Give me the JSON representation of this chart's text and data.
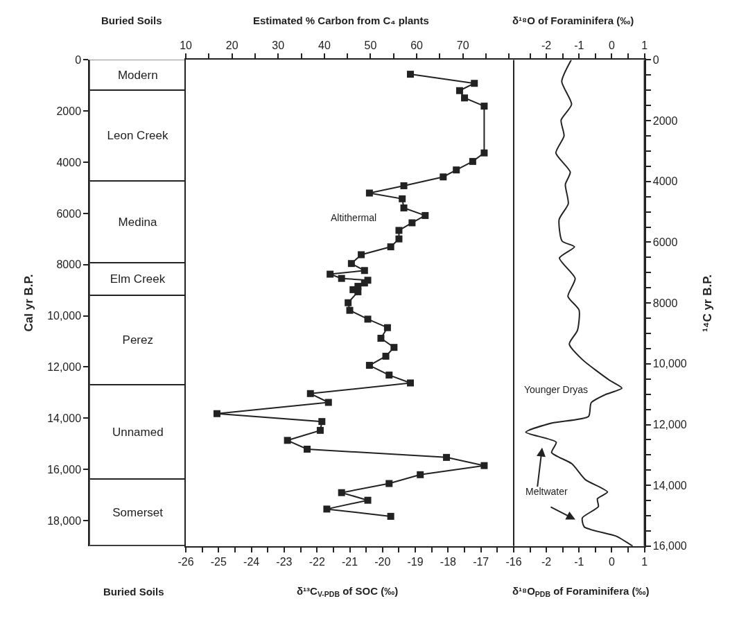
{
  "chart_data": [
    {
      "type": "bar",
      "stacked": true,
      "title": "Buried Soils",
      "xlabel": "Buried Soils",
      "ylabel": "Cal yr B.P.",
      "ylim": [
        19000,
        0
      ],
      "categories": [
        null
      ],
      "series": [
        {
          "name": "Modern",
          "color": "#ffffff",
          "values": [
            1200
          ]
        },
        {
          "name": "Leon Creek",
          "color": "#ffffff",
          "values": [
            3550
          ]
        },
        {
          "name": "Medina",
          "color": "#ffffff",
          "values": [
            3200
          ]
        },
        {
          "name": "Elm Creek",
          "color": "#ffffff",
          "values": [
            1250
          ]
        },
        {
          "name": "Perez",
          "color": "#ffffff",
          "values": [
            3500
          ]
        },
        {
          "name": "Unnamed",
          "color": "#ffffff",
          "values": [
            3700
          ]
        },
        {
          "name": "Somerset",
          "color": "#ffffff",
          "values": [
            2600
          ]
        }
      ],
      "yticks": [
        0,
        2000,
        4000,
        6000,
        8000,
        {
          "value": 10000,
          "label": "10,000"
        },
        {
          "value": 12000,
          "label": "12,000"
        },
        {
          "value": 14000,
          "label": "14,000"
        },
        {
          "value": 16000,
          "label": "16,000"
        },
        {
          "value": 18000,
          "label": "18,000"
        }
      ]
    },
    {
      "type": "line",
      "xlabel": "δ¹³C$_{V-PDB}$ of SOC (‰)",
      "x2label": "Estimated % Carbon from C₄ plants",
      "tick_labels": "x",
      "marker": "square",
      "line_style": "solid",
      "xlim": [
        -26,
        -16
      ],
      "xticks": [
        -26,
        {
          "value": -25.5,
          "label": null
        },
        -25,
        {
          "value": -24.5,
          "label": null
        },
        -24,
        {
          "value": -23.5,
          "label": null
        },
        -23,
        {
          "value": -22.5,
          "label": null
        },
        -22,
        {
          "value": -21.5,
          "label": null
        },
        -21,
        {
          "value": -20.5,
          "label": null
        },
        -20,
        {
          "value": -19.5,
          "label": null
        },
        -19,
        {
          "value": -18.5,
          "label": null
        },
        -18,
        {
          "value": -17.5,
          "label": null
        },
        -17,
        {
          "value": -16.5,
          "label": null
        },
        -16
      ],
      "x2lim": [
        10,
        81
      ],
      "x2ticks": [
        10,
        {
          "value": 15,
          "label": null
        },
        20,
        {
          "value": 25,
          "label": null
        },
        30,
        {
          "value": 35,
          "label": null
        },
        40,
        {
          "value": 45,
          "label": null
        },
        50,
        {
          "value": 55,
          "label": null
        },
        60,
        {
          "value": 65,
          "label": null
        },
        70,
        {
          "value": 75,
          "label": null
        },
        {
          "value": 80,
          "label": null
        }
      ],
      "ylim": [
        16000,
        0
      ],
      "annotations": [
        "Altithermal"
      ],
      "series": [
        {
          "color": "#222222",
          "x": [
            -19.15,
            -17.2,
            -17.65,
            -17.5,
            -16.9,
            -16.9,
            -17.25,
            -17.75,
            -18.15,
            -19.35,
            -20.4,
            -19.4,
            -19.35,
            -18.7,
            -19.1,
            -19.5,
            -19.5,
            -19.75,
            -20.65,
            -20.95,
            -20.55,
            -21.6,
            -21.25,
            -20.45,
            -20.55,
            -20.75,
            -20.9,
            -20.75,
            -21.05,
            -21.0,
            -20.45,
            -19.85,
            -20.05,
            -19.65,
            -19.9,
            -20.4,
            -19.8,
            -19.15,
            -22.2,
            -21.65,
            -25.05,
            -21.85,
            -21.9,
            -22.9,
            -22.3,
            -18.05,
            -16.9,
            -18.85,
            -19.8,
            -21.25,
            -20.45,
            -21.7,
            -19.75
          ],
          "values": [
            470,
            770,
            1010,
            1250,
            1520,
            3060,
            3340,
            3620,
            3850,
            4140,
            4380,
            4570,
            4870,
            5120,
            5360,
            5610,
            5890,
            6150,
            6410,
            6700,
            6930,
            7050,
            7190,
            7250,
            7340,
            7450,
            7560,
            7630,
            7990,
            8240,
            8530,
            8810,
            9160,
            9460,
            9750,
            10050,
            10370,
            10630,
            10980,
            11270,
            11640,
            11900,
            12190,
            12520,
            12810,
            13080,
            13350,
            13650,
            13940,
            14240,
            14490,
            14780,
            15020
          ]
        }
      ]
    },
    {
      "type": "line",
      "xlabel": "δ¹⁸O$_{PDB}$ of Foraminifera (‰)",
      "x2label": "δ¹⁸O of Foraminifera (‰)",
      "ylabel": "¹⁴C yr B.P.",
      "marker": "none",
      "line_style": "solid",
      "xlim": [
        -3,
        1
      ],
      "xticks": [
        {
          "value": -2.5,
          "label": null
        },
        -2,
        {
          "value": -1.5,
          "label": null
        },
        -1,
        {
          "value": -0.5,
          "label": null
        },
        0,
        {
          "value": 0.5,
          "label": null
        },
        1
      ],
      "x2lim": [
        -3,
        1
      ],
      "x2ticks": [
        {
          "value": -2.5,
          "label": null
        },
        -2,
        {
          "value": -1.5,
          "label": null
        },
        -1,
        {
          "value": -0.5,
          "label": null
        },
        0,
        {
          "value": 0.5,
          "label": null
        },
        1
      ],
      "ylim": [
        16000,
        0
      ],
      "yticks": [
        0,
        {
          "value": 500,
          "label": null
        },
        {
          "value": 1000,
          "label": null
        },
        {
          "value": 1500,
          "label": null
        },
        2000,
        {
          "value": 2500,
          "label": null
        },
        {
          "value": 3000,
          "label": null
        },
        {
          "value": 3500,
          "label": null
        },
        4000,
        {
          "value": 4500,
          "label": null
        },
        {
          "value": 5000,
          "label": null
        },
        {
          "value": 5500,
          "label": null
        },
        6000,
        {
          "value": 6500,
          "label": null
        },
        {
          "value": 7000,
          "label": null
        },
        {
          "value": 7500,
          "label": null
        },
        8000,
        {
          "value": 8500,
          "label": null
        },
        {
          "value": 9000,
          "label": null
        },
        {
          "value": 9500,
          "label": null
        },
        {
          "value": 10000,
          "label": "10,000"
        },
        {
          "value": 10500,
          "label": null
        },
        {
          "value": 11000,
          "label": null
        },
        {
          "value": 11500,
          "label": null
        },
        {
          "value": 12000,
          "label": "12,000"
        },
        {
          "value": 12500,
          "label": null
        },
        {
          "value": 13000,
          "label": null
        },
        {
          "value": 13500,
          "label": null
        },
        {
          "value": 14000,
          "label": "14,000"
        },
        {
          "value": 14500,
          "label": null
        },
        {
          "value": 15000,
          "label": null
        },
        {
          "value": 15500,
          "label": null
        },
        {
          "value": 16000,
          "label": "16,000"
        }
      ],
      "annotations": [
        "Younger Dryas",
        "Meltwater"
      ],
      "series": [
        {
          "color": "#222222",
          "x": [
            -1.24,
            -1.53,
            -1.23,
            -1.55,
            -1.46,
            -1.71,
            -1.27,
            -1.42,
            -1.33,
            -1.61,
            -1.52,
            -1.14,
            -1.6,
            -1.12,
            -1.34,
            -1.0,
            -1.05,
            -1.3,
            -0.89,
            -0.07,
            0.31,
            -0.21,
            -0.63,
            -0.71,
            -1.83,
            -2.63,
            -1.7,
            -1.84,
            -1.22,
            -0.81,
            -0.13,
            -0.44,
            -0.41,
            -0.9,
            -0.84,
            0.13,
            0.64
          ],
          "values": [
            0,
            710,
            1460,
            1980,
            2500,
            3060,
            3690,
            4100,
            4730,
            5250,
            5960,
            6150,
            6520,
            7190,
            7780,
            8230,
            8900,
            9350,
            9870,
            10540,
            10800,
            11020,
            11280,
            11730,
            11950,
            12250,
            12580,
            12920,
            13290,
            13810,
            14220,
            14440,
            14700,
            15070,
            15370,
            15670,
            16000
          ]
        }
      ]
    }
  ]
}
